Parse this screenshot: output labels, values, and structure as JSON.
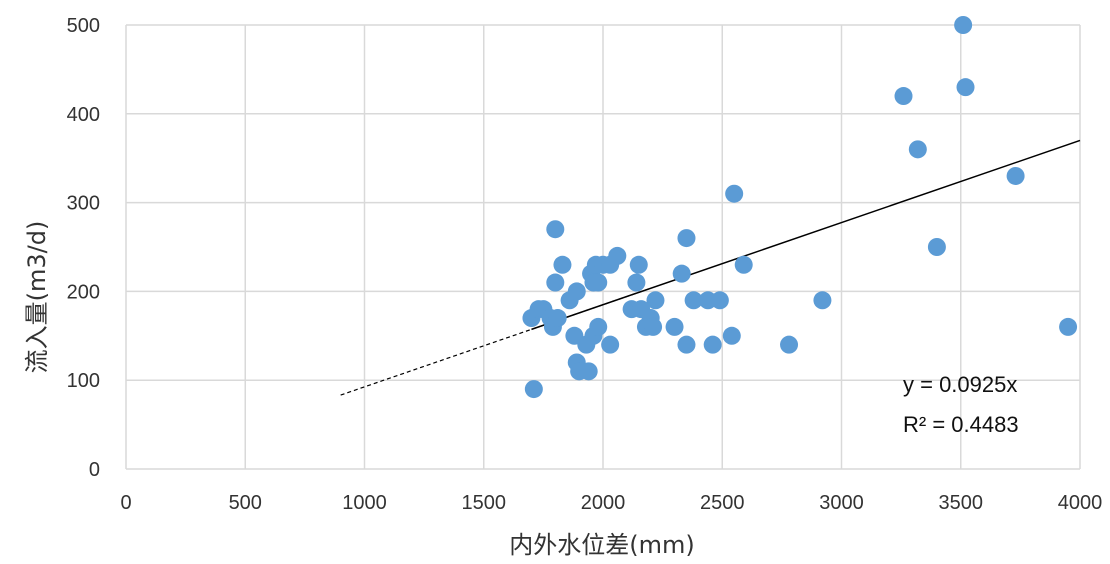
{
  "chart_data": {
    "type": "scatter",
    "title": "",
    "xlabel": "内外水位差(mm)",
    "ylabel": "流入量(m3/d)",
    "xlim": [
      0,
      4000
    ],
    "ylim": [
      0,
      500
    ],
    "x_ticks": [
      "0",
      "500",
      "1000",
      "1500",
      "2000",
      "2500",
      "3000",
      "3500",
      "4000"
    ],
    "y_ticks": [
      "0",
      "100",
      "200",
      "300",
      "400",
      "500"
    ],
    "grid": "vertical-and-horizontal",
    "point_color": "#5B9BD5",
    "points": [
      [
        1700,
        170
      ],
      [
        1710,
        90
      ],
      [
        1730,
        180
      ],
      [
        1750,
        180
      ],
      [
        1780,
        170
      ],
      [
        1790,
        160
      ],
      [
        1800,
        270
      ],
      [
        1800,
        210
      ],
      [
        1810,
        170
      ],
      [
        1830,
        230
      ],
      [
        1860,
        190
      ],
      [
        1880,
        150
      ],
      [
        1890,
        120
      ],
      [
        1890,
        200
      ],
      [
        1900,
        110
      ],
      [
        1930,
        140
      ],
      [
        1940,
        110
      ],
      [
        1950,
        220
      ],
      [
        1960,
        210
      ],
      [
        1960,
        150
      ],
      [
        1970,
        230
      ],
      [
        1980,
        210
      ],
      [
        1980,
        160
      ],
      [
        2000,
        230
      ],
      [
        2030,
        140
      ],
      [
        2030,
        230
      ],
      [
        2060,
        240
      ],
      [
        2120,
        180
      ],
      [
        2140,
        210
      ],
      [
        2150,
        230
      ],
      [
        2160,
        180
      ],
      [
        2180,
        160
      ],
      [
        2200,
        170
      ],
      [
        2210,
        160
      ],
      [
        2220,
        190
      ],
      [
        2300,
        160
      ],
      [
        2330,
        220
      ],
      [
        2350,
        140
      ],
      [
        2350,
        260
      ],
      [
        2380,
        190
      ],
      [
        2440,
        190
      ],
      [
        2460,
        140
      ],
      [
        2490,
        190
      ],
      [
        2540,
        150
      ],
      [
        2550,
        310
      ],
      [
        2590,
        230
      ],
      [
        2780,
        140
      ],
      [
        2920,
        190
      ],
      [
        3260,
        420
      ],
      [
        3320,
        360
      ],
      [
        3400,
        250
      ],
      [
        3510,
        500
      ],
      [
        3520,
        430
      ],
      [
        3730,
        330
      ],
      [
        3950,
        160
      ]
    ],
    "trendline": {
      "equation": "y = 0.0925x",
      "r_squared": "R² = 0.4483",
      "slope": 0.0925,
      "solid_range": [
        1700,
        4000
      ],
      "dashed_range": [
        900,
        2200
      ]
    }
  }
}
